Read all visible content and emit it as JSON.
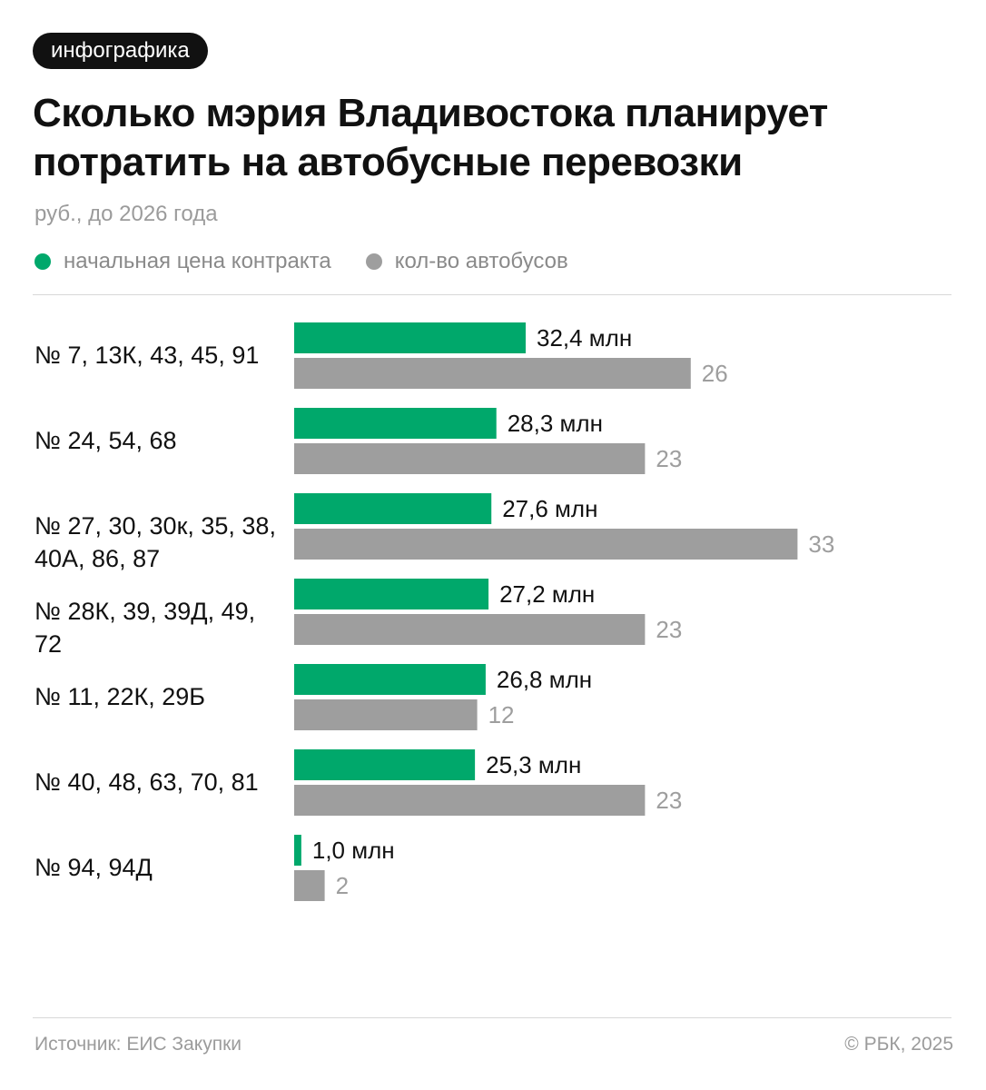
{
  "badge": "инфографика",
  "title": "Сколько мэрия Владивостока планирует потратить на автобусные перевозки",
  "subtitle": "руб., до 2026 года",
  "legend": {
    "price_label": "начальная цена контракта",
    "buses_label": "кол-во автобусов"
  },
  "colors": {
    "price": "#00a86b",
    "buses": "#9e9e9e",
    "price_text": "#111111",
    "buses_text": "#9e9e9e"
  },
  "chart_data": {
    "type": "bar",
    "orientation": "horizontal",
    "title": "Сколько мэрия Владивостока планирует потратить на автобусные перевозки",
    "subtitle": "руб., до 2026 года",
    "categories": [
      "№ 7, 13К, 43, 45, 91",
      "№ 24, 54, 68",
      "№ 27, 30, 30к, 35, 38, 40А, 86, 87",
      "№ 28К, 39, 39Д, 49, 72",
      "№ 11, 22К, 29Б",
      "№ 40, 48, 63, 70, 81",
      "№ 94, 94Д"
    ],
    "series": [
      {
        "name": "начальная цена контракта",
        "unit": "млн",
        "values": [
          32.4,
          28.3,
          27.6,
          27.2,
          26.8,
          25.3,
          1.0
        ],
        "labels": [
          "32,4 млн",
          "28,3 млн",
          "27,6 млн",
          "27,2 млн",
          "26,8 млн",
          "25,3 млн",
          "1,0 млн"
        ]
      },
      {
        "name": "кол-во автобусов",
        "values": [
          26,
          23,
          33,
          23,
          12,
          23,
          2
        ],
        "labels": [
          "26",
          "23",
          "33",
          "23",
          "12",
          "23",
          "2"
        ]
      }
    ],
    "grid": false,
    "legend_position": "top-left"
  },
  "footer": {
    "source": "Источник: ЕИС Закупки",
    "copyright": "© РБК, 2025"
  }
}
